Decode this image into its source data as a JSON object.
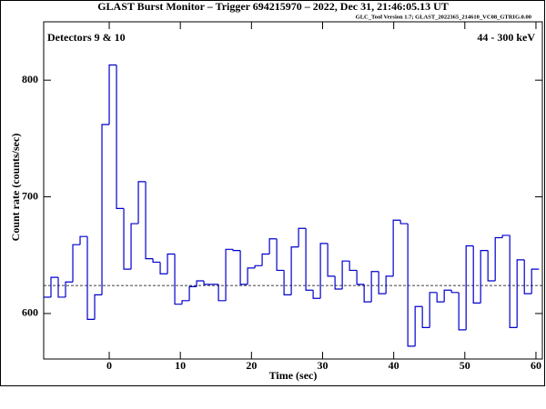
{
  "chart_data": {
    "type": "histogram",
    "title": "GLAST Burst Monitor  –  Trigger 694215970  –  2022, Dec 31, 21:46:05.13 UT",
    "subtitle": "GLC_Tool Version 1.7; GLAST_2022365_214610_VC08_GTRIG.0.00",
    "annotations": [
      "Detectors 9 & 10",
      "44 - 300 keV"
    ],
    "x_label": "Time (sec)",
    "y_label": "Count rate (counts/sec)",
    "color": "#0000cc",
    "bins": [
      -9.216,
      -8.192,
      -7.168,
      -6.144,
      -5.12,
      -4.096,
      -3.072,
      -2.048,
      -1.024,
      0,
      1.024,
      2.048,
      3.072,
      4.096,
      5.12,
      6.144,
      7.168,
      8.192,
      9.216,
      10.24,
      11.264,
      12.288,
      13.312,
      14.336,
      15.36,
      16.384,
      17.408,
      18.432,
      19.456,
      20.48,
      21.504,
      22.528,
      23.552,
      24.576,
      25.6,
      26.624,
      27.648,
      28.672,
      29.696,
      30.72,
      31.744,
      32.768,
      33.792,
      34.816,
      35.84,
      36.864,
      37.888,
      38.912,
      39.936,
      40.96,
      41.984,
      43.008,
      44.032,
      45.056,
      46.08,
      47.104,
      48.128,
      49.152,
      50.176,
      51.2,
      52.224,
      53.248,
      54.272,
      55.296,
      56.32,
      57.344,
      58.368,
      59.392,
      60.416
    ],
    "values": [
      614,
      631,
      614,
      627,
      659,
      666,
      595,
      616,
      762,
      813,
      690,
      638,
      677,
      713,
      647,
      644,
      634,
      651,
      608,
      611,
      623,
      628,
      625,
      625,
      611,
      655,
      654,
      625,
      639,
      641,
      651,
      664,
      637,
      616,
      657,
      673,
      620,
      613,
      660,
      632,
      621,
      645,
      637,
      625,
      610,
      636,
      617,
      632,
      680,
      677,
      572,
      606,
      588,
      618,
      610,
      620,
      618,
      586,
      658,
      609,
      654,
      628,
      665,
      667,
      588,
      646,
      617,
      638
    ],
    "background_level": 624,
    "xlim": [
      -9.216,
      60.9
    ],
    "ylim": [
      561,
      850
    ],
    "xticks": [
      0,
      10,
      20,
      30,
      40,
      50,
      60
    ],
    "yticks": [
      600,
      700,
      800
    ]
  }
}
